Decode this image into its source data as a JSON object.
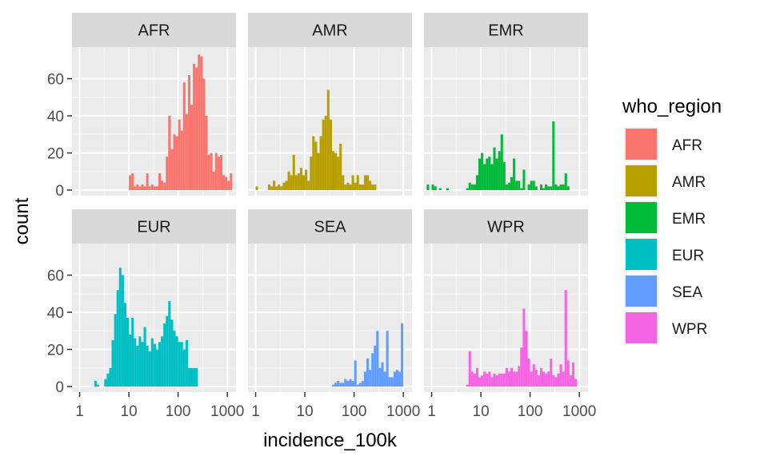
{
  "chart_data": {
    "type": "bar",
    "subtype": "faceted-histogram",
    "xlabel": "incidence_100k",
    "ylabel": "count",
    "x_scale": "log10",
    "xlim": [
      0.7,
      1500
    ],
    "ylim": [
      -3,
      77
    ],
    "x_ticks": [
      1,
      10,
      100,
      1000
    ],
    "x_tick_labels": [
      "1",
      "10",
      "100",
      "1000"
    ],
    "y_ticks": [
      0,
      20,
      40,
      60
    ],
    "y_tick_labels": [
      "0",
      "20",
      "40",
      "60"
    ],
    "grid": true,
    "legend": {
      "title": "who_region",
      "position": "right"
    },
    "bin_width_log10": 0.05,
    "bin_start_log10": 0.0,
    "series": [
      {
        "name": "AFR",
        "color": "#F8766D",
        "bins": [
          [
            1.0,
            8
          ],
          [
            1.05,
            9
          ],
          [
            1.1,
            2
          ],
          [
            1.15,
            3
          ],
          [
            1.2,
            2
          ],
          [
            1.25,
            3
          ],
          [
            1.3,
            2
          ],
          [
            1.35,
            9
          ],
          [
            1.4,
            2
          ],
          [
            1.45,
            3
          ],
          [
            1.5,
            2
          ],
          [
            1.55,
            2
          ],
          [
            1.6,
            9
          ],
          [
            1.65,
            5
          ],
          [
            1.7,
            4
          ],
          [
            1.75,
            18
          ],
          [
            1.8,
            40
          ],
          [
            1.85,
            22
          ],
          [
            1.9,
            30
          ],
          [
            1.95,
            29
          ],
          [
            2.0,
            38
          ],
          [
            2.05,
            32
          ],
          [
            2.1,
            58
          ],
          [
            2.15,
            41
          ],
          [
            2.2,
            62
          ],
          [
            2.25,
            46
          ],
          [
            2.3,
            68
          ],
          [
            2.35,
            66
          ],
          [
            2.4,
            73
          ],
          [
            2.45,
            72
          ],
          [
            2.5,
            60
          ],
          [
            2.55,
            40
          ],
          [
            2.6,
            19
          ],
          [
            2.65,
            20
          ],
          [
            2.7,
            10
          ],
          [
            2.75,
            20
          ],
          [
            2.8,
            18
          ],
          [
            2.85,
            19
          ],
          [
            2.9,
            8
          ],
          [
            2.95,
            7
          ],
          [
            3.0,
            5
          ],
          [
            3.05,
            9
          ]
        ]
      },
      {
        "name": "AMR",
        "color": "#B79F00",
        "bins": [
          [
            0.0,
            2
          ],
          [
            0.25,
            3
          ],
          [
            0.3,
            2
          ],
          [
            0.35,
            5
          ],
          [
            0.4,
            2
          ],
          [
            0.45,
            3
          ],
          [
            0.5,
            2
          ],
          [
            0.55,
            4
          ],
          [
            0.6,
            5
          ],
          [
            0.65,
            10
          ],
          [
            0.7,
            8
          ],
          [
            0.75,
            19
          ],
          [
            0.8,
            8
          ],
          [
            0.85,
            9
          ],
          [
            0.9,
            12
          ],
          [
            0.95,
            8
          ],
          [
            1.0,
            11
          ],
          [
            1.05,
            5
          ],
          [
            1.1,
            18
          ],
          [
            1.15,
            29
          ],
          [
            1.2,
            26
          ],
          [
            1.25,
            20
          ],
          [
            1.3,
            29
          ],
          [
            1.35,
            38
          ],
          [
            1.4,
            40
          ],
          [
            1.45,
            54
          ],
          [
            1.5,
            38
          ],
          [
            1.55,
            21
          ],
          [
            1.6,
            20
          ],
          [
            1.65,
            18
          ],
          [
            1.7,
            25
          ],
          [
            1.75,
            8
          ],
          [
            1.8,
            3
          ],
          [
            1.85,
            4
          ],
          [
            1.9,
            3
          ],
          [
            1.95,
            8
          ],
          [
            2.0,
            4
          ],
          [
            2.05,
            8
          ],
          [
            2.1,
            3
          ],
          [
            2.15,
            3
          ],
          [
            2.2,
            8
          ],
          [
            2.25,
            8
          ],
          [
            2.3,
            5
          ],
          [
            2.35,
            3
          ],
          [
            2.4,
            3
          ]
        ]
      },
      {
        "name": "EMR",
        "color": "#00BA38",
        "bins": [
          [
            -0.1,
            3
          ],
          [
            0.0,
            3
          ],
          [
            0.05,
            2
          ],
          [
            0.15,
            1
          ],
          [
            0.3,
            1
          ],
          [
            0.7,
            1
          ],
          [
            0.75,
            4
          ],
          [
            0.8,
            3
          ],
          [
            0.85,
            3
          ],
          [
            0.9,
            8
          ],
          [
            0.95,
            17
          ],
          [
            1.0,
            20
          ],
          [
            1.05,
            14
          ],
          [
            1.1,
            17
          ],
          [
            1.15,
            18
          ],
          [
            1.2,
            14
          ],
          [
            1.25,
            23
          ],
          [
            1.3,
            17
          ],
          [
            1.35,
            21
          ],
          [
            1.4,
            30
          ],
          [
            1.45,
            15
          ],
          [
            1.5,
            3
          ],
          [
            1.55,
            4
          ],
          [
            1.6,
            7
          ],
          [
            1.65,
            17
          ],
          [
            1.7,
            5
          ],
          [
            1.75,
            5
          ],
          [
            1.8,
            1
          ],
          [
            1.85,
            11
          ],
          [
            1.95,
            3
          ],
          [
            2.0,
            5
          ],
          [
            2.05,
            5
          ],
          [
            2.1,
            2
          ],
          [
            2.2,
            3
          ],
          [
            2.25,
            1
          ],
          [
            2.3,
            3
          ],
          [
            2.35,
            2
          ],
          [
            2.4,
            2
          ],
          [
            2.45,
            37
          ],
          [
            2.5,
            3
          ],
          [
            2.55,
            2
          ],
          [
            2.6,
            3
          ],
          [
            2.65,
            3
          ],
          [
            2.7,
            9
          ],
          [
            2.75,
            2
          ]
        ]
      },
      {
        "name": "EUR",
        "color": "#00BFC4",
        "bins": [
          [
            0.3,
            3
          ],
          [
            0.35,
            1
          ],
          [
            0.5,
            4
          ],
          [
            0.55,
            7
          ],
          [
            0.6,
            10
          ],
          [
            0.65,
            25
          ],
          [
            0.7,
            39
          ],
          [
            0.75,
            52
          ],
          [
            0.8,
            64
          ],
          [
            0.85,
            60
          ],
          [
            0.9,
            45
          ],
          [
            0.95,
            37
          ],
          [
            1.0,
            28
          ],
          [
            1.05,
            37
          ],
          [
            1.1,
            26
          ],
          [
            1.15,
            22
          ],
          [
            1.2,
            27
          ],
          [
            1.25,
            24
          ],
          [
            1.3,
            32
          ],
          [
            1.35,
            22
          ],
          [
            1.4,
            19
          ],
          [
            1.45,
            26
          ],
          [
            1.5,
            23
          ],
          [
            1.55,
            20
          ],
          [
            1.6,
            24
          ],
          [
            1.65,
            27
          ],
          [
            1.7,
            34
          ],
          [
            1.75,
            38
          ],
          [
            1.8,
            46
          ],
          [
            1.85,
            36
          ],
          [
            1.9,
            30
          ],
          [
            1.95,
            27
          ],
          [
            2.0,
            24
          ],
          [
            2.05,
            24
          ],
          [
            2.1,
            20
          ],
          [
            2.15,
            25
          ],
          [
            2.2,
            10
          ],
          [
            2.25,
            10
          ],
          [
            2.3,
            10
          ],
          [
            2.35,
            10
          ]
        ]
      },
      {
        "name": "SEA",
        "color": "#619CFF",
        "bins": [
          [
            1.55,
            1
          ],
          [
            1.6,
            2
          ],
          [
            1.65,
            3
          ],
          [
            1.7,
            2
          ],
          [
            1.75,
            2
          ],
          [
            1.8,
            4
          ],
          [
            1.85,
            3
          ],
          [
            1.9,
            4
          ],
          [
            1.95,
            3
          ],
          [
            2.0,
            14
          ],
          [
            2.05,
            1
          ],
          [
            2.1,
            2
          ],
          [
            2.15,
            3
          ],
          [
            2.2,
            8
          ],
          [
            2.25,
            15
          ],
          [
            2.3,
            9
          ],
          [
            2.35,
            18
          ],
          [
            2.4,
            22
          ],
          [
            2.45,
            30
          ],
          [
            2.5,
            10
          ],
          [
            2.55,
            13
          ],
          [
            2.6,
            8
          ],
          [
            2.65,
            30
          ],
          [
            2.7,
            5
          ],
          [
            2.75,
            5
          ],
          [
            2.8,
            8
          ],
          [
            2.85,
            9
          ],
          [
            2.9,
            8
          ],
          [
            2.95,
            34
          ]
        ]
      },
      {
        "name": "WPR",
        "color": "#F564E3",
        "bins": [
          [
            0.7,
            1
          ],
          [
            0.75,
            19
          ],
          [
            0.8,
            8
          ],
          [
            0.85,
            7
          ],
          [
            0.9,
            10
          ],
          [
            0.95,
            5
          ],
          [
            1.0,
            6
          ],
          [
            1.05,
            8
          ],
          [
            1.1,
            7
          ],
          [
            1.15,
            8
          ],
          [
            1.2,
            5
          ],
          [
            1.25,
            7
          ],
          [
            1.3,
            6
          ],
          [
            1.35,
            7
          ],
          [
            1.4,
            7
          ],
          [
            1.45,
            7
          ],
          [
            1.5,
            10
          ],
          [
            1.55,
            8
          ],
          [
            1.6,
            10
          ],
          [
            1.65,
            8
          ],
          [
            1.7,
            8
          ],
          [
            1.75,
            11
          ],
          [
            1.8,
            21
          ],
          [
            1.85,
            42
          ],
          [
            1.9,
            30
          ],
          [
            1.95,
            15
          ],
          [
            2.0,
            8
          ],
          [
            2.05,
            12
          ],
          [
            2.1,
            9
          ],
          [
            2.15,
            6
          ],
          [
            2.2,
            10
          ],
          [
            2.25,
            8
          ],
          [
            2.3,
            7
          ],
          [
            2.35,
            8
          ],
          [
            2.4,
            15
          ],
          [
            2.45,
            6
          ],
          [
            2.5,
            5
          ],
          [
            2.55,
            7
          ],
          [
            2.6,
            12
          ],
          [
            2.65,
            8
          ],
          [
            2.7,
            52
          ],
          [
            2.75,
            14
          ],
          [
            2.8,
            6
          ],
          [
            2.85,
            13
          ],
          [
            2.9,
            4
          ]
        ]
      }
    ]
  }
}
